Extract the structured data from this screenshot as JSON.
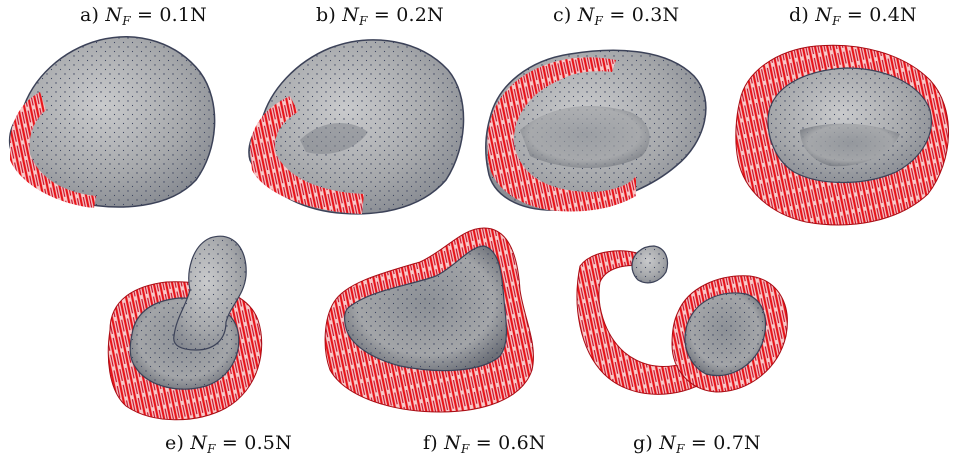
{
  "figure": {
    "panels": [
      {
        "id": "a",
        "letter": "a)",
        "symbol": "N",
        "subscript": "F",
        "value": "0.1N"
      },
      {
        "id": "b",
        "letter": "b)",
        "symbol": "N",
        "subscript": "F",
        "value": "0.2N"
      },
      {
        "id": "c",
        "letter": "c)",
        "symbol": "N",
        "subscript": "F",
        "value": "0.3N"
      },
      {
        "id": "d",
        "letter": "d)",
        "symbol": "N",
        "subscript": "F",
        "value": "0.4N"
      },
      {
        "id": "e",
        "letter": "e)",
        "symbol": "N",
        "subscript": "F",
        "value": "0.5N"
      },
      {
        "id": "f",
        "letter": "f)",
        "symbol": "N",
        "subscript": "F",
        "value": "0.6N"
      },
      {
        "id": "g",
        "letter": "g)",
        "symbol": "N",
        "subscript": "F",
        "value": "0.7N"
      }
    ],
    "colors": {
      "mesh": "#a9abae",
      "mesh_dark": "#5f6470",
      "outline": "#3c4258",
      "contact": "#e8141a"
    }
  }
}
